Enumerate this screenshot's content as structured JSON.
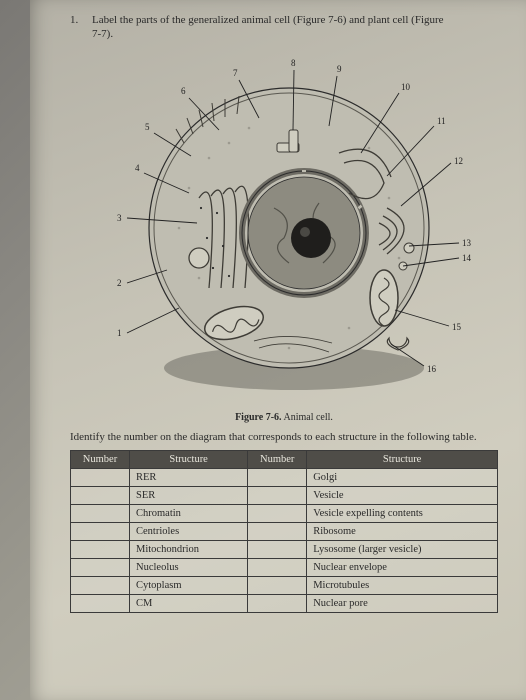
{
  "question": {
    "number": "1.",
    "text_a": "Label the parts of the generalized animal cell (Figure 7-6) and plant cell (Figure",
    "text_b": "7-7)."
  },
  "figure": {
    "caption_bold": "Figure 7-6.",
    "caption_rest": " Animal cell.",
    "labels": {
      "n1": "1",
      "n2": "2",
      "n3": "3",
      "n4": "4",
      "n5": "5",
      "n6": "6",
      "n7": "7",
      "n8": "8",
      "n9": "9",
      "n10": "10",
      "n11": "11",
      "n12": "12",
      "n13": "13",
      "n14": "14",
      "n15": "15",
      "n16": "16"
    },
    "credit": ""
  },
  "instruction": "Identify the number on the diagram that corresponds to each structure in the following table.",
  "table": {
    "headers": {
      "h1": "Number",
      "h2": "Structure",
      "h3": "Number",
      "h4": "Structure"
    },
    "rows": [
      {
        "s1": "RER",
        "s2": "Golgi"
      },
      {
        "s1": "SER",
        "s2": "Vesicle"
      },
      {
        "s1": "Chromatin",
        "s2": "Vesicle expelling contents"
      },
      {
        "s1": "Centrioles",
        "s2": "Ribosome"
      },
      {
        "s1": "Mitochondrion",
        "s2": "Lysosome (larger vesicle)"
      },
      {
        "s1": "Nucleolus",
        "s2": "Nuclear envelope"
      },
      {
        "s1": "Cytoplasm",
        "s2": "Microtubules"
      },
      {
        "s1": "CM",
        "s2": "Nuclear pore"
      }
    ]
  },
  "colors": {
    "cell_outline": "#2b2b2b",
    "cell_fill": "#bfbdb1",
    "cell_membrane": "#5a5850",
    "nucleus_outer": "#6d6b63",
    "nucleus_inner": "#8d8b80",
    "nucleolus": "#1f1e1c",
    "er_stroke": "#3e3c36",
    "mito_fill": "#cfcdc0",
    "mito_stroke": "#3e3c36",
    "golgi_stroke": "#3e3c36",
    "shadow": "#3a3933"
  }
}
